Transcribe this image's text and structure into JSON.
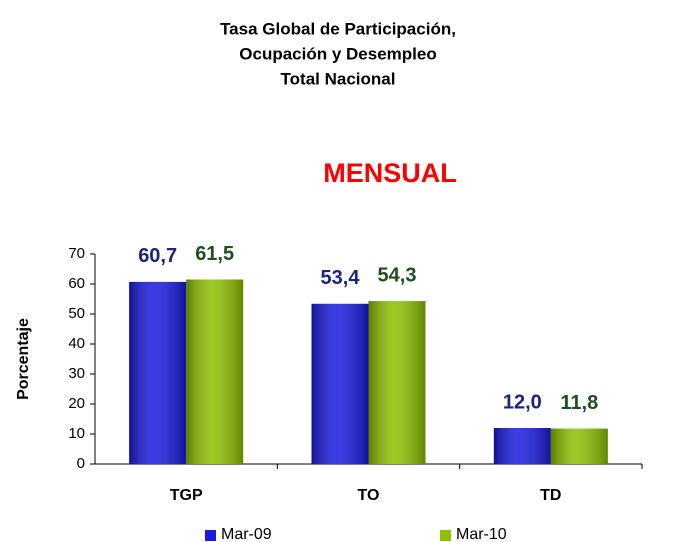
{
  "chart_data": {
    "type": "bar",
    "title": [
      "Tasa Global de Participación,",
      "Ocupación y Desempleo",
      "Total Nacional"
    ],
    "subtitle": "MENSUAL",
    "subtitle_color": "#ff0000",
    "y_label": "Porcentaje",
    "categories": [
      "TGP",
      "TO",
      "TD"
    ],
    "series": [
      {
        "name": "Mar-09",
        "color": "#1a1ae0",
        "label_color": "#1a237e",
        "values": [
          60.7,
          53.4,
          12.0
        ],
        "value_labels": [
          "60,7",
          "53,4",
          "12,0"
        ]
      },
      {
        "name": "Mar-10",
        "color": "#8cc000",
        "label_color": "#1e4d1e",
        "values": [
          61.5,
          54.3,
          11.8
        ],
        "value_labels": [
          "61,5",
          "54,3",
          "11,8"
        ]
      }
    ],
    "ylim": [
      0,
      70
    ],
    "yticks": [
      0,
      10,
      20,
      30,
      40,
      50,
      60,
      70
    ],
    "grid": false
  }
}
